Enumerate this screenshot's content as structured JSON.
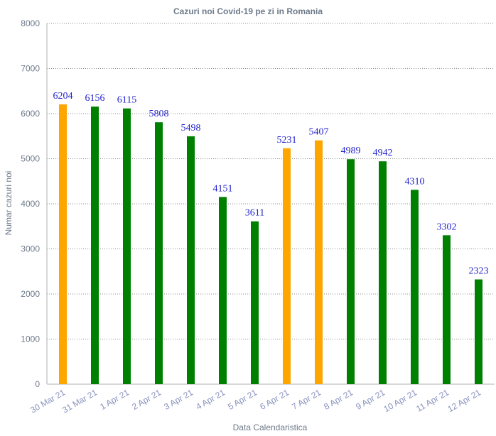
{
  "chart_data": {
    "type": "bar",
    "title": "Cazuri noi Covid-19 pe zi in Romania",
    "xlabel": "Data Calendaristica",
    "ylabel": "Numar cazuri noi",
    "ylim": [
      0,
      8000
    ],
    "yticks": [
      0,
      1000,
      2000,
      3000,
      4000,
      5000,
      6000,
      7000,
      8000
    ],
    "grid": true,
    "categories": [
      "30 Mar 21",
      "31 Mar 21",
      "1 Apr 21",
      "2 Apr 21",
      "3 Apr 21",
      "4 Apr 21",
      "5 Apr 21",
      "6 Apr 21",
      "7 Apr 21",
      "8 Apr 21",
      "9 Apr 21",
      "10 Apr 21",
      "11 Apr 21",
      "12 Apr 21"
    ],
    "values": [
      6204,
      6156,
      6115,
      5808,
      5498,
      4151,
      3611,
      5231,
      5407,
      4989,
      4942,
      4310,
      3302,
      2323
    ],
    "colors": [
      "#ffa500",
      "#008000",
      "#008000",
      "#008000",
      "#008000",
      "#008000",
      "#008000",
      "#ffa500",
      "#ffa500",
      "#008000",
      "#008000",
      "#008000",
      "#008000",
      "#008000"
    ],
    "data_label_color": "#2323cc"
  }
}
